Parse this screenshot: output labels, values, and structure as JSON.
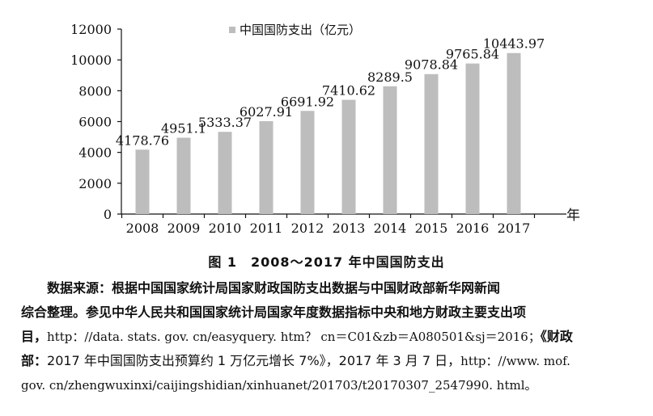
{
  "chart_data": {
    "type": "bar",
    "categories": [
      "2008",
      "2009",
      "2010",
      "2011",
      "2012",
      "2013",
      "2014",
      "2015",
      "2016",
      "2017"
    ],
    "series": [
      {
        "name": "中国国防支出（亿元）",
        "values": [
          4178.76,
          4951.1,
          5333.37,
          6027.91,
          6691.92,
          7410.62,
          8289.5,
          9078.84,
          9765.84,
          10443.97
        ],
        "labels": [
          "4178.76",
          "4951.1",
          "5333.37",
          "6027.91",
          "6691.92",
          "7410.62",
          "8289.5",
          "9078.84",
          "9765.84",
          "10443.97"
        ]
      }
    ],
    "xlabel": "年",
    "ylabel": "",
    "ylim": [
      0,
      12000
    ],
    "yticks": [
      "0",
      "2000",
      "4000",
      "6000",
      "8000",
      "10000",
      "12000"
    ],
    "grid": false,
    "legend": "top",
    "bar_color": "#bdbdbd"
  },
  "caption": "图 1　2008～2017 年中国国防支出",
  "source": {
    "line1": "数据来源：根据中国国家统计局国家财政国防支出数据与中国财政部新华网新闻",
    "line2": "综合整理。参见中华人民共和国国家统计局国家年度数据指标中央和地方财政主要支出项",
    "line3_a": "目，",
    "line3_b": "http：//data. stats. gov. cn/easyquery. htm？ cn＝C01&zb＝A080501&sj＝2016；",
    "line3_c": "《财政",
    "line4_a": "部：",
    "line4_b": "2017 年中国国防支出预算约 1 万亿元增长 7%》，2017 年 3 月 7 日，",
    "line4_c": "http：//www. mof.",
    "line5": "gov. cn/zhengwuxinxi/caijingshidian/xinhuanet/201703/t20170307_2547990. html。"
  }
}
